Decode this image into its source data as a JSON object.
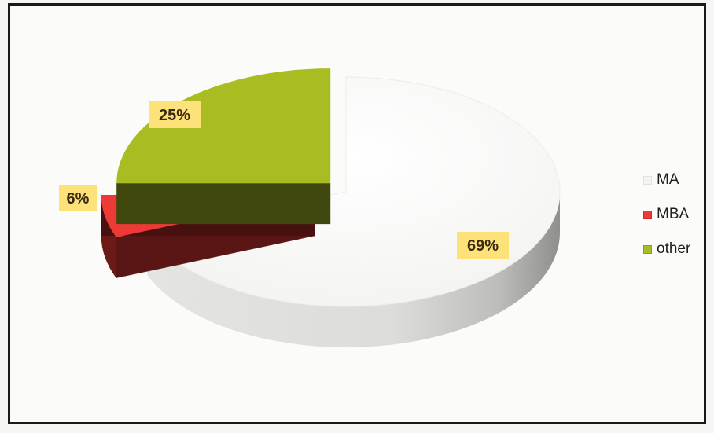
{
  "chart_data": {
    "type": "pie",
    "style": "3d-exploded",
    "title": "",
    "categories": [
      "MA",
      "MBA",
      "other"
    ],
    "values": [
      69,
      6,
      25
    ],
    "labels": [
      "69%",
      "6%",
      "25%"
    ],
    "colors": [
      "#f4f4f2",
      "#ee3a36",
      "#a9bd22"
    ],
    "legend_position": "right"
  },
  "legend": {
    "items": [
      {
        "label": "MA",
        "color": "#f4f4f2"
      },
      {
        "label": "MBA",
        "color": "#ee3a36"
      },
      {
        "label": "other",
        "color": "#a9bd22"
      }
    ]
  }
}
